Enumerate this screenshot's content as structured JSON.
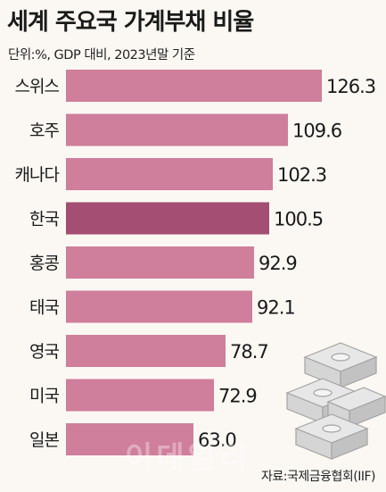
{
  "title": "세계 주요국 가계부채 비율",
  "subtitle": "단위:%, GDP 대비, 2023년말 기준",
  "source": "자료:국제금융협회(IIF)",
  "watermark": "이데일리",
  "colors": {
    "bar": "#cf7e9c",
    "highlight": "#a34e72",
    "background": "#fbf8f4",
    "label": "#1a1a1a"
  },
  "chart_data": {
    "type": "bar",
    "orientation": "horizontal",
    "title": "세계 주요국 가계부채 비율",
    "categories": [
      "스위스",
      "호주",
      "캐나다",
      "한국",
      "홍콩",
      "태국",
      "영국",
      "미국",
      "일본"
    ],
    "values": [
      126.3,
      109.6,
      102.3,
      100.5,
      92.9,
      92.1,
      78.7,
      72.9,
      63.0
    ],
    "value_labels": [
      "126.3",
      "109.6",
      "102.3",
      "100.5",
      "92.9",
      "92.1",
      "78.7",
      "72.9",
      "63.0"
    ],
    "highlight": "한국",
    "xlim": [
      0,
      126.3
    ],
    "grid": false,
    "legend": "none"
  },
  "decoration": {
    "icon": "money-stack-icon"
  }
}
